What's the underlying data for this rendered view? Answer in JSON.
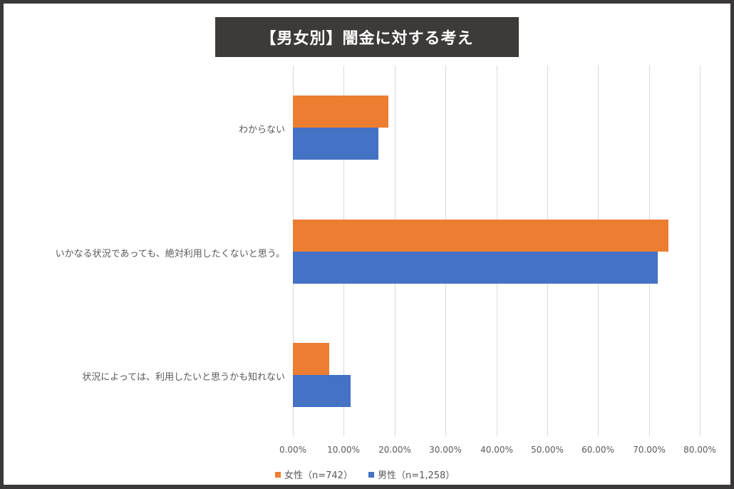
{
  "chart_data": {
    "type": "bar",
    "orientation": "horizontal",
    "title": "【男女別】闇金に対する考え",
    "categories": [
      "わからない",
      "いかなる状況であっても、絶対利用したくないと思う。",
      "状況によっては、利用したいと思うかも知れない"
    ],
    "series": [
      {
        "name": "女性（n=742）",
        "color": "#ED7D31",
        "values": [
          18.8,
          73.9,
          7.1
        ]
      },
      {
        "name": "男性（n=1,258）",
        "color": "#4472C4",
        "values": [
          16.8,
          71.7,
          11.3
        ]
      }
    ],
    "xlabel": "",
    "ylabel": "",
    "xlim": [
      0,
      80
    ],
    "x_ticks": [
      "0.00%",
      "10.00%",
      "20.00%",
      "30.00%",
      "40.00%",
      "50.00%",
      "60.00%",
      "70.00%",
      "80.00%"
    ],
    "grid": true,
    "legend_position": "bottom"
  },
  "legend": {
    "female": "女性（n=742）",
    "male": "男性（n=1,258）"
  },
  "colors": {
    "female": "#ED7D31",
    "male": "#4472C4",
    "title_bg": "#3d3a39",
    "frame": "#3a3838"
  }
}
